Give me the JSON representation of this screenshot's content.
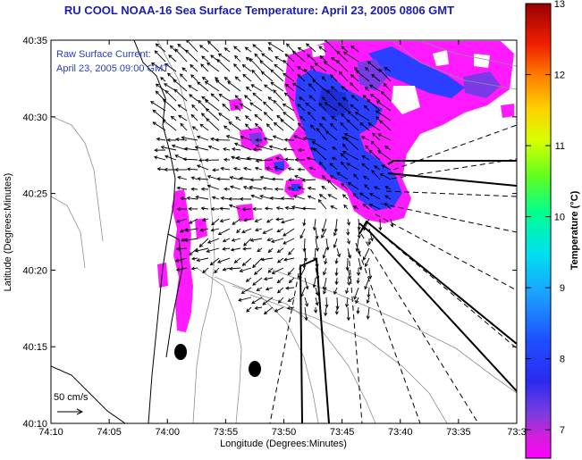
{
  "title": "RU COOL  NOAA-16  Sea Surface Temperature:  April 23, 2005 0806 GMT",
  "annotation": {
    "line1": "Raw Surface Current:",
    "line2": "April 23, 2005 09:00 GMT",
    "scale_label": "50 cm/s"
  },
  "axes": {
    "xlabel": "Longitude (Degrees:Minutes)",
    "ylabel": "Latitude (Degrees:Minutes)",
    "x_ticks": [
      "74:10",
      "74:05",
      "74:00",
      "73:55",
      "73:50",
      "73:45",
      "73:40",
      "73:35",
      "73:3"
    ],
    "y_ticks": [
      "40:35",
      "40:30",
      "40:25",
      "40:20",
      "40:15",
      "40:10"
    ]
  },
  "colorbar": {
    "label": "Temperature (°C)",
    "ticks": [
      "13",
      "12",
      "11",
      "10",
      "9",
      "8",
      "7"
    ],
    "range": [
      6.6,
      13
    ],
    "colors": [
      "#ff00ff",
      "#d020d8",
      "#7a3ce0",
      "#3a3af0",
      "#1e3cff",
      "#1a8cff",
      "#00d8ff",
      "#00ffb0",
      "#40ff40",
      "#c0ff00",
      "#ffff00",
      "#ffb000",
      "#ff5000",
      "#e01010",
      "#a00000"
    ]
  },
  "colors": {
    "title": "#1c1cb4",
    "annotation": "#2b3cc8",
    "sst_magenta": "#ff1aff",
    "sst_blue": "#2a3fff",
    "sst_violet": "#7a3be6",
    "land_contour": "#909090"
  }
}
